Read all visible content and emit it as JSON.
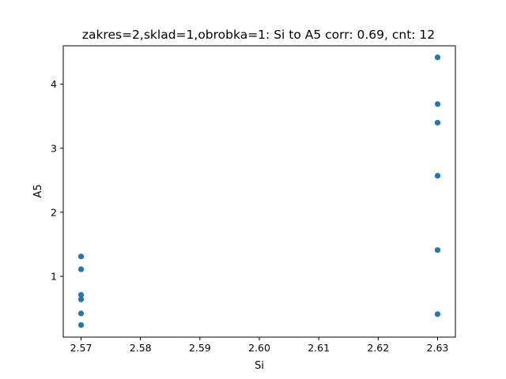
{
  "chart_data": {
    "type": "scatter",
    "title": "zakres=2,sklad=1,obrobka=1: Si to A5 corr: 0.69, cnt: 12",
    "xlabel": "Si",
    "ylabel": "A5",
    "xlim": [
      2.567,
      2.633
    ],
    "ylim": [
      0.05,
      4.6
    ],
    "xticks": [
      2.57,
      2.58,
      2.59,
      2.6,
      2.61,
      2.62,
      2.63
    ],
    "xtick_labels": [
      "2.57",
      "2.58",
      "2.59",
      "2.60",
      "2.61",
      "2.62",
      "2.63"
    ],
    "yticks": [
      1,
      2,
      3,
      4
    ],
    "ytick_labels": [
      "1",
      "2",
      "3",
      "4"
    ],
    "grid": false,
    "marker_color": "#1f77b4",
    "points": [
      {
        "x": 2.57,
        "y": 1.31
      },
      {
        "x": 2.57,
        "y": 1.11
      },
      {
        "x": 2.57,
        "y": 0.71
      },
      {
        "x": 2.57,
        "y": 0.64
      },
      {
        "x": 2.57,
        "y": 0.42
      },
      {
        "x": 2.57,
        "y": 0.24
      },
      {
        "x": 2.63,
        "y": 4.42
      },
      {
        "x": 2.63,
        "y": 3.69
      },
      {
        "x": 2.63,
        "y": 3.4
      },
      {
        "x": 2.63,
        "y": 2.57
      },
      {
        "x": 2.63,
        "y": 1.41
      },
      {
        "x": 2.63,
        "y": 0.41
      }
    ]
  }
}
